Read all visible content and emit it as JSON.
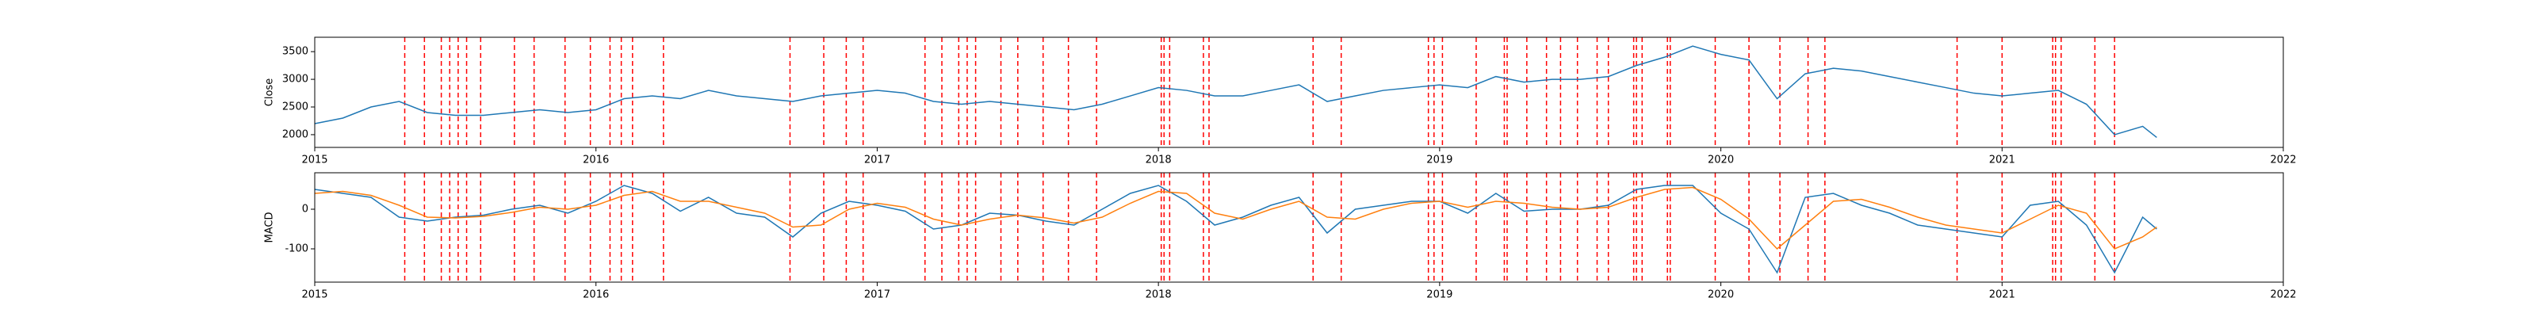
{
  "chart_data": [
    {
      "type": "line",
      "ylabel": "Close",
      "x": [
        2015.0,
        2015.1,
        2015.2,
        2015.3,
        2015.4,
        2015.5,
        2015.6,
        2015.7,
        2015.8,
        2015.9,
        2016.0,
        2016.1,
        2016.2,
        2016.3,
        2016.4,
        2016.5,
        2016.6,
        2016.7,
        2016.8,
        2016.9,
        2017.0,
        2017.1,
        2017.2,
        2017.3,
        2017.4,
        2017.5,
        2017.6,
        2017.7,
        2017.8,
        2017.9,
        2018.0,
        2018.1,
        2018.2,
        2018.3,
        2018.4,
        2018.5,
        2018.6,
        2018.7,
        2018.8,
        2018.9,
        2019.0,
        2019.1,
        2019.2,
        2019.3,
        2019.4,
        2019.5,
        2019.6,
        2019.7,
        2019.8,
        2019.9,
        2020.0,
        2020.1,
        2020.2,
        2020.3,
        2020.4,
        2020.5,
        2020.6,
        2020.7,
        2020.8,
        2020.9,
        2021.0,
        2021.1,
        2021.2,
        2021.3,
        2021.4,
        2021.5,
        2021.55
      ],
      "series": [
        {
          "color": "#1f77b4",
          "values": [
            2200,
            2300,
            2500,
            2600,
            2400,
            2350,
            2350,
            2400,
            2450,
            2400,
            2450,
            2650,
            2700,
            2650,
            2800,
            2700,
            2650,
            2600,
            2700,
            2750,
            2800,
            2750,
            2600,
            2550,
            2600,
            2550,
            2500,
            2450,
            2550,
            2700,
            2850,
            2800,
            2700,
            2700,
            2800,
            2900,
            2600,
            2700,
            2800,
            2850,
            2900,
            2850,
            3050,
            2950,
            3000,
            3000,
            3050,
            3250,
            3400,
            3600,
            3450,
            3350,
            2650,
            3100,
            3200,
            3150,
            3050,
            2950,
            2850,
            2750,
            2700,
            2750,
            2800,
            2550,
            2000,
            2150,
            1950
          ]
        }
      ],
      "xlim": [
        2015,
        2022
      ],
      "xticks": [
        2015,
        2016,
        2017,
        2018,
        2019,
        2020,
        2021,
        2022
      ],
      "ylim": [
        1770,
        3760
      ],
      "yticks": [
        2000,
        2500,
        3000,
        3500
      ],
      "events": [
        2015.32,
        2015.39,
        2015.45,
        2015.48,
        2015.51,
        2015.54,
        2015.59,
        2015.71,
        2015.78,
        2015.89,
        2015.98,
        2016.05,
        2016.09,
        2016.13,
        2016.24,
        2016.69,
        2016.81,
        2016.89,
        2016.95,
        2017.17,
        2017.23,
        2017.29,
        2017.32,
        2017.35,
        2017.44,
        2017.5,
        2017.59,
        2017.68,
        2017.78,
        2018.01,
        2018.02,
        2018.04,
        2018.16,
        2018.18,
        2018.55,
        2018.65,
        2018.96,
        2018.98,
        2019.01,
        2019.13,
        2019.23,
        2019.24,
        2019.31,
        2019.38,
        2019.43,
        2019.49,
        2019.56,
        2019.6,
        2019.69,
        2019.7,
        2019.72,
        2019.81,
        2019.82,
        2019.98,
        2020.1,
        2020.21,
        2020.31,
        2020.37,
        2020.84,
        2021.0,
        2021.18,
        2021.19,
        2021.21,
        2021.33,
        2021.4
      ],
      "event_color": "#ff0000"
    },
    {
      "type": "line",
      "ylabel": "MACD",
      "x": [
        2015.0,
        2015.1,
        2015.2,
        2015.3,
        2015.4,
        2015.5,
        2015.6,
        2015.7,
        2015.8,
        2015.9,
        2016.0,
        2016.1,
        2016.2,
        2016.3,
        2016.4,
        2016.5,
        2016.6,
        2016.7,
        2016.8,
        2016.9,
        2017.0,
        2017.1,
        2017.2,
        2017.3,
        2017.4,
        2017.5,
        2017.6,
        2017.7,
        2017.8,
        2017.9,
        2018.0,
        2018.1,
        2018.2,
        2018.3,
        2018.4,
        2018.5,
        2018.6,
        2018.7,
        2018.8,
        2018.9,
        2019.0,
        2019.1,
        2019.2,
        2019.3,
        2019.4,
        2019.5,
        2019.6,
        2019.7,
        2019.8,
        2019.9,
        2020.0,
        2020.1,
        2020.2,
        2020.3,
        2020.4,
        2020.5,
        2020.6,
        2020.7,
        2020.8,
        2020.9,
        2021.0,
        2021.1,
        2021.2,
        2021.3,
        2021.4,
        2021.5,
        2021.55
      ],
      "series": [
        {
          "color": "#1f77b4",
          "values": [
            50,
            40,
            30,
            -20,
            -30,
            -20,
            -15,
            0,
            10,
            -10,
            20,
            60,
            40,
            -5,
            30,
            -10,
            -20,
            -70,
            -10,
            20,
            10,
            -5,
            -50,
            -40,
            -10,
            -15,
            -30,
            -40,
            0,
            40,
            60,
            20,
            -40,
            -20,
            10,
            30,
            -60,
            0,
            10,
            20,
            20,
            -10,
            40,
            -5,
            0,
            0,
            10,
            50,
            60,
            60,
            -10,
            -50,
            -160,
            30,
            40,
            10,
            -10,
            -40,
            -50,
            -60,
            -70,
            10,
            20,
            -40,
            -160,
            -20,
            -50
          ]
        },
        {
          "color": "#ff7f0e",
          "values": [
            40,
            45,
            35,
            10,
            -20,
            -22,
            -18,
            -8,
            5,
            0,
            10,
            35,
            45,
            20,
            20,
            5,
            -10,
            -45,
            -40,
            0,
            15,
            5,
            -25,
            -40,
            -25,
            -15,
            -22,
            -35,
            -20,
            15,
            45,
            40,
            -10,
            -25,
            0,
            20,
            -20,
            -25,
            0,
            15,
            20,
            5,
            20,
            15,
            5,
            0,
            5,
            30,
            50,
            55,
            25,
            -25,
            -100,
            -40,
            20,
            25,
            5,
            -20,
            -40,
            -50,
            -60,
            -25,
            10,
            -10,
            -100,
            -70,
            -45
          ]
        }
      ],
      "xlim": [
        2015,
        2022
      ],
      "xticks": [
        2015,
        2016,
        2017,
        2018,
        2019,
        2020,
        2021,
        2022
      ],
      "ylim": [
        -184,
        92
      ],
      "yticks": [
        -100,
        0
      ],
      "events": [
        2015.32,
        2015.39,
        2015.45,
        2015.48,
        2015.51,
        2015.54,
        2015.59,
        2015.71,
        2015.78,
        2015.89,
        2015.98,
        2016.05,
        2016.09,
        2016.13,
        2016.24,
        2016.69,
        2016.81,
        2016.89,
        2016.95,
        2017.17,
        2017.23,
        2017.29,
        2017.32,
        2017.35,
        2017.44,
        2017.5,
        2017.59,
        2017.68,
        2017.78,
        2018.01,
        2018.02,
        2018.04,
        2018.16,
        2018.18,
        2018.55,
        2018.65,
        2018.96,
        2018.98,
        2019.01,
        2019.13,
        2019.23,
        2019.24,
        2019.31,
        2019.38,
        2019.43,
        2019.49,
        2019.56,
        2019.6,
        2019.69,
        2019.7,
        2019.72,
        2019.81,
        2019.82,
        2019.98,
        2020.1,
        2020.21,
        2020.31,
        2020.37,
        2020.84,
        2021.0,
        2021.18,
        2021.19,
        2021.21,
        2021.33,
        2021.4
      ],
      "event_color": "#ff0000"
    }
  ]
}
